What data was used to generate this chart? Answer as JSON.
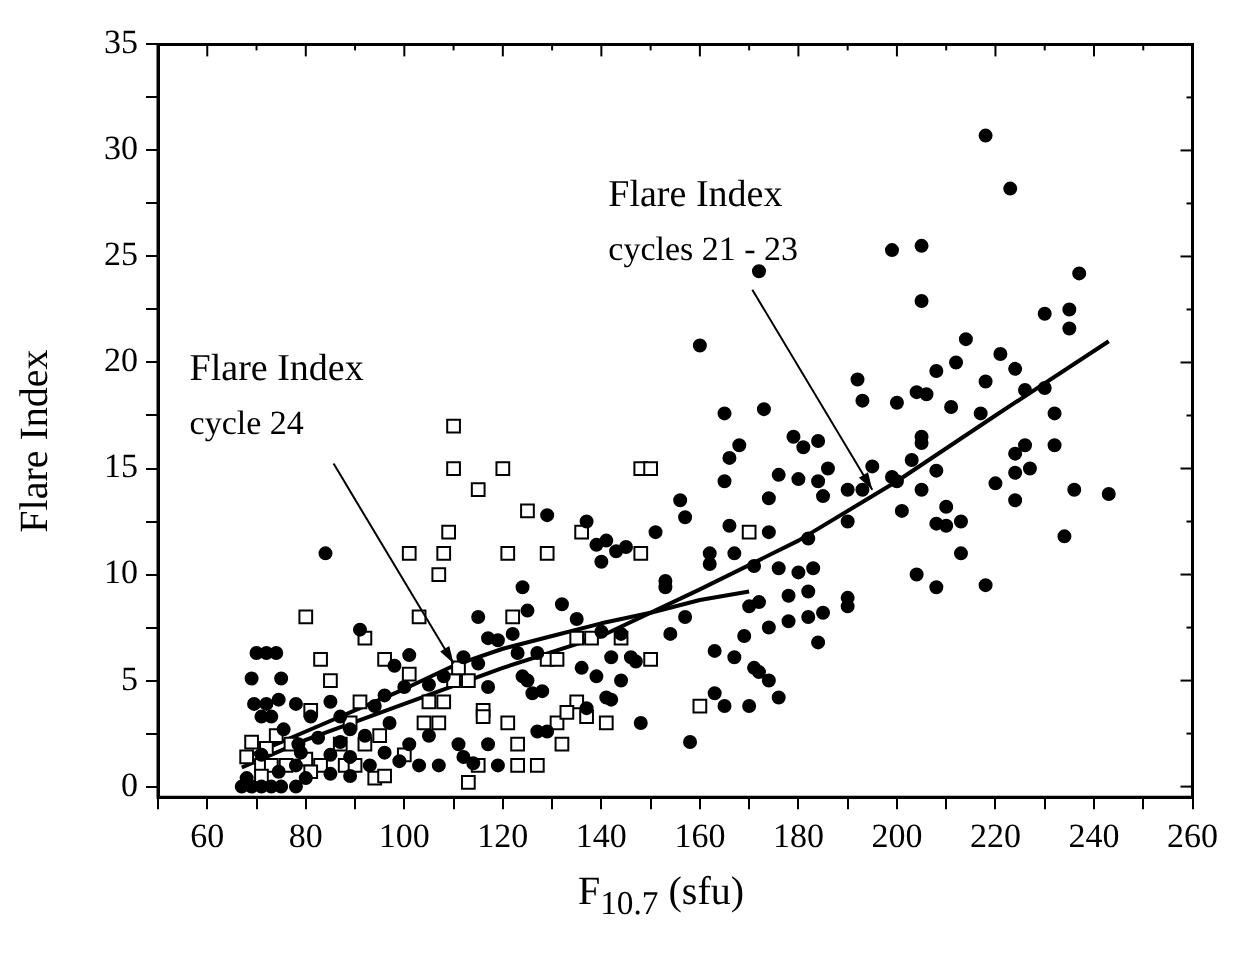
{
  "chart_data": {
    "type": "scatter",
    "xlabel": "F$_{10.7}$ (sfu)",
    "ylabel": "Flare Index",
    "xlim": [
      50,
      260
    ],
    "ylim": [
      -0.5,
      35
    ],
    "xticks": [
      {
        "value": 50,
        "label": null
      },
      60,
      {
        "value": 70,
        "label": null
      },
      80,
      {
        "value": 90,
        "label": null
      },
      100,
      {
        "value": 110,
        "label": null
      },
      120,
      {
        "value": 130,
        "label": null
      },
      140,
      {
        "value": 150,
        "label": null
      },
      160,
      {
        "value": 170,
        "label": null
      },
      180,
      {
        "value": 190,
        "label": null
      },
      200,
      {
        "value": 210,
        "label": null
      },
      220,
      {
        "value": 230,
        "label": null
      },
      240,
      {
        "value": 250,
        "label": null
      },
      260
    ],
    "yticks": [
      0,
      {
        "value": 2.5,
        "label": null
      },
      5,
      {
        "value": 7.5,
        "label": null
      },
      10,
      {
        "value": 12.5,
        "label": null
      },
      15,
      {
        "value": 17.5,
        "label": null
      },
      20,
      {
        "value": 22.5,
        "label": null
      },
      25,
      {
        "value": 27.5,
        "label": null
      },
      30,
      {
        "value": 32.5,
        "label": null
      },
      35
    ],
    "grid": false,
    "legend": false,
    "annotations": [
      {
        "text": "Flare Index\ncycles 21 - 23",
        "x": 195,
        "y": 14
      },
      {
        "text": "Flare Index\ncycle 24",
        "x": 110,
        "y": 5.8
      }
    ],
    "series": [
      {
        "marker": "circle",
        "color": "#000000",
        "x": [
          218,
          223,
          172,
          199,
          205,
          205,
          237,
          235,
          235,
          230,
          160,
          221,
          214,
          212,
          208,
          224,
          218,
          192,
          193,
          200,
          204,
          206,
          211,
          230,
          226,
          232,
          217,
          173,
          165,
          168,
          179,
          184,
          181,
          205,
          205,
          226,
          232,
          166,
          195,
          203,
          208,
          224,
          227,
          199,
          200,
          205,
          224,
          220,
          236,
          243,
          224,
          193,
          190,
          186,
          180,
          184,
          185,
          176,
          165,
          156,
          174,
          157,
          190,
          210,
          213,
          208,
          210,
          201,
          166,
          174,
          151,
          234,
          213,
          182,
          162,
          171,
          167,
          162,
          176,
          183,
          180,
          204,
          208,
          218,
          190,
          190,
          153,
          153,
          172,
          170,
          157,
          182,
          178,
          185,
          182,
          178,
          174,
          184,
          169,
          154,
          167,
          163,
          171,
          172,
          174,
          176,
          163,
          165,
          170,
          158,
          148,
          129,
          137,
          141,
          139,
          140,
          143,
          145,
          124,
          125,
          132,
          115,
          117,
          119,
          122,
          135,
          140,
          144,
          112,
          115,
          123,
          127,
          136,
          142,
          146,
          147,
          139,
          124,
          125,
          144,
          108,
          105,
          117,
          126,
          141,
          142,
          128,
          137,
          129,
          127,
          117,
          111,
          101,
          105,
          103,
          107,
          114,
          119,
          93,
          112,
          101,
          98,
          91,
          100,
          96,
          94,
          84,
          70,
          72,
          74,
          69,
          75,
          69.5,
          72,
          74.5,
          78,
          81,
          85,
          87,
          89,
          73,
          75.5,
          71,
          78.5,
          82.5,
          85,
          89,
          71,
          78,
          74.5,
          67,
          69,
          71,
          73,
          75,
          78,
          68,
          80,
          85,
          89,
          92,
          96,
          99,
          97,
          87,
          79
        ],
        "values": [
          30.7,
          28.2,
          24.3,
          25.3,
          25.5,
          22.9,
          24.2,
          22.5,
          21.6,
          22.3,
          20.8,
          20.4,
          21.1,
          20.0,
          19.6,
          19.7,
          19.1,
          19.2,
          18.2,
          18.1,
          18.6,
          18.5,
          17.9,
          18.8,
          18.7,
          17.6,
          17.6,
          17.8,
          17.6,
          16.1,
          16.5,
          16.3,
          16.0,
          16.5,
          16.2,
          16.1,
          16.1,
          15.5,
          15.1,
          15.4,
          14.9,
          15.7,
          15.0,
          14.6,
          14.4,
          14.0,
          14.8,
          14.3,
          14.0,
          13.8,
          13.5,
          14.0,
          14.0,
          15.0,
          14.5,
          14.4,
          13.7,
          14.7,
          14.4,
          13.5,
          13.6,
          12.7,
          12.5,
          12.3,
          12.5,
          12.4,
          13.2,
          13.0,
          12.3,
          12.0,
          12.0,
          11.8,
          11.0,
          11.7,
          11.0,
          10.4,
          11.0,
          10.5,
          10.3,
          10.3,
          10.1,
          10.0,
          9.4,
          9.5,
          8.9,
          8.5,
          9.7,
          9.4,
          8.7,
          8.5,
          8.0,
          9.2,
          9.0,
          8.2,
          8.0,
          7.8,
          7.5,
          6.8,
          7.1,
          7.2,
          6.1,
          6.4,
          5.6,
          5.4,
          5.0,
          4.2,
          4.4,
          3.8,
          3.8,
          2.1,
          3.0,
          12.8,
          12.5,
          11.6,
          11.4,
          10.6,
          11.1,
          11.3,
          9.4,
          8.3,
          8.6,
          8.0,
          7.0,
          6.9,
          7.2,
          7.9,
          7.3,
          7.2,
          6.1,
          5.8,
          6.3,
          6.3,
          5.6,
          6.1,
          6.1,
          5.9,
          5.2,
          5.2,
          5.0,
          5.0,
          5.2,
          4.8,
          4.7,
          4.4,
          4.2,
          4.1,
          4.5,
          3.7,
          2.6,
          2.6,
          2.0,
          2.0,
          2.0,
          2.4,
          1.0,
          1.0,
          1.1,
          1.0,
          1.0,
          1.4,
          6.2,
          5.7,
          7.4,
          4.7,
          4.3,
          3.8,
          11.0,
          6.3,
          6.3,
          6.3,
          5.1,
          5.1,
          3.9,
          3.9,
          4.1,
          3.9,
          3.3,
          4.0,
          3.3,
          2.7,
          3.3,
          2.7,
          3.3,
          2.0,
          2.3,
          1.5,
          1.4,
          1.5,
          1.0,
          0.7,
          0,
          0,
          0,
          0,
          0,
          0,
          0.4,
          0.4,
          0.6,
          0.5,
          2.4,
          1.6,
          1.2,
          3.0,
          2.1,
          1.6
        ]
      },
      {
        "type": "scatter",
        "marker": "square",
        "color": "#000000",
        "x": [
          110,
          110,
          120,
          115,
          125,
          109,
          136,
          170,
          101,
          108,
          121,
          129,
          148,
          148,
          150,
          107,
          80,
          103,
          122,
          92,
          135,
          138,
          144,
          83,
          96,
          129,
          131,
          150,
          101,
          85,
          110,
          113,
          111,
          91,
          105,
          108,
          135,
          116,
          116,
          104,
          107,
          121,
          131,
          133,
          141,
          137,
          160,
          81,
          89,
          74,
          69,
          87,
          92,
          95,
          132,
          123,
          100,
          72,
          77,
          68,
          71,
          73,
          76,
          80,
          83,
          88,
          90,
          115,
          123,
          127,
          81,
          71,
          94,
          96,
          113
        ],
        "values": [
          17,
          15,
          15,
          14,
          13,
          12,
          12,
          12,
          11,
          11,
          11,
          11,
          11,
          15,
          15,
          10,
          8,
          8,
          8,
          7,
          7,
          7,
          7,
          6,
          6,
          6,
          6,
          6,
          5.3,
          5,
          5,
          5,
          5.6,
          4,
          4,
          4,
          4,
          3.6,
          3.3,
          3,
          3,
          3,
          3,
          3.5,
          3,
          3.3,
          3.8,
          3.6,
          3,
          2.4,
          2.1,
          2,
          2,
          2.4,
          2,
          2,
          1.5,
          1.8,
          2,
          1.4,
          1,
          1,
          1,
          1.3,
          1,
          1,
          1,
          1,
          1,
          1,
          0.7,
          0.5,
          0.4,
          0.5,
          0.2
        ]
      },
      {
        "type": "line",
        "marker": "none",
        "line_style": "solid",
        "color": "#000000",
        "x": [
          67,
          80,
          100,
          120,
          140,
          160,
          180,
          200,
          220,
          243
        ],
        "values": [
          0.9,
          2.2,
          3.9,
          5.6,
          7.1,
          9.3,
          11.6,
          14.4,
          17.5,
          21
        ]
      },
      {
        "type": "line",
        "marker": "none",
        "line_style": "solid",
        "color": "#000000",
        "x": [
          67,
          80,
          100,
          110,
          120,
          130,
          140,
          150,
          160,
          170
        ],
        "values": [
          1.3,
          2.6,
          4.6,
          5.7,
          6.5,
          7.1,
          7.7,
          8.2,
          8.8,
          9.2
        ]
      }
    ]
  }
}
